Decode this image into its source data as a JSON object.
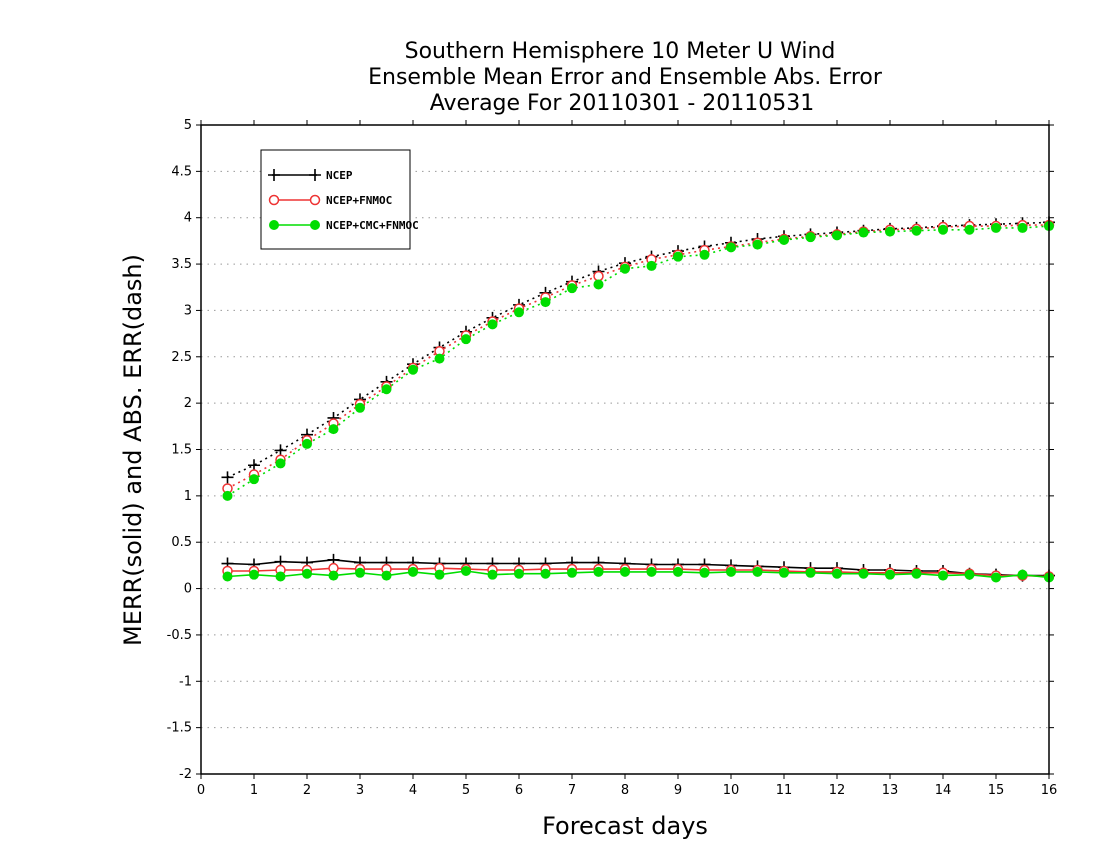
{
  "chart_data": {
    "type": "line",
    "title": [
      "Southern Hemisphere 10 Meter U Wind",
      "Ensemble Mean Error and Ensemble Abs. Error",
      "Average For 20110301 - 20110531"
    ],
    "xlabel": "Forecast days",
    "ylabel": "MERR(solid) and ABS. ERR(dash)",
    "xlim": [
      0,
      16
    ],
    "ylim": [
      -2,
      5
    ],
    "x_ticks": [
      "0",
      "1",
      "2",
      "3",
      "4",
      "5",
      "6",
      "7",
      "8",
      "9",
      "10",
      "11",
      "12",
      "13",
      "14",
      "15",
      "16"
    ],
    "y_ticks": [
      "-2",
      "-1.5",
      "-1",
      "-0.5",
      "0",
      "0.5",
      "1",
      "1.5",
      "2",
      "2.5",
      "3",
      "3.5",
      "4",
      "4.5",
      "5"
    ],
    "grid": "horizontal-dotted",
    "legend_position": "top-left",
    "x": [
      0.5,
      1,
      1.5,
      2,
      2.5,
      3,
      3.5,
      4,
      4.5,
      5,
      5.5,
      6,
      6.5,
      7,
      7.5,
      8,
      8.5,
      9,
      9.5,
      10,
      10.5,
      11,
      11.5,
      12,
      12.5,
      13,
      13.5,
      14,
      14.5,
      15,
      15.5,
      16
    ],
    "series": [
      {
        "name": "NCEP",
        "color": "#000000",
        "marker": "plus",
        "merr": [
          0.27,
          0.26,
          0.29,
          0.28,
          0.31,
          0.28,
          0.28,
          0.28,
          0.27,
          0.27,
          0.27,
          0.27,
          0.27,
          0.28,
          0.28,
          0.27,
          0.26,
          0.26,
          0.26,
          0.25,
          0.24,
          0.23,
          0.22,
          0.22,
          0.2,
          0.2,
          0.19,
          0.19,
          0.16,
          0.15,
          0.14,
          0.14
        ],
        "abserr": [
          1.2,
          1.33,
          1.49,
          1.66,
          1.84,
          2.04,
          2.23,
          2.42,
          2.6,
          2.77,
          2.92,
          3.06,
          3.19,
          3.31,
          3.42,
          3.51,
          3.58,
          3.64,
          3.69,
          3.73,
          3.77,
          3.8,
          3.82,
          3.84,
          3.86,
          3.88,
          3.89,
          3.91,
          3.92,
          3.93,
          3.94,
          3.95
        ]
      },
      {
        "name": "NCEP+FNMOC",
        "color": "#ee3333",
        "marker": "circle-open",
        "merr": [
          0.19,
          0.19,
          0.2,
          0.2,
          0.22,
          0.21,
          0.21,
          0.21,
          0.22,
          0.21,
          0.2,
          0.2,
          0.21,
          0.21,
          0.21,
          0.21,
          0.21,
          0.21,
          0.2,
          0.2,
          0.2,
          0.19,
          0.18,
          0.18,
          0.17,
          0.17,
          0.17,
          0.17,
          0.16,
          0.14,
          0.14,
          0.13
        ],
        "abserr": [
          1.08,
          1.23,
          1.39,
          1.6,
          1.78,
          1.99,
          2.18,
          2.38,
          2.56,
          2.73,
          2.88,
          3.02,
          3.14,
          3.27,
          3.37,
          3.47,
          3.55,
          3.6,
          3.65,
          3.69,
          3.73,
          3.77,
          3.8,
          3.82,
          3.85,
          3.87,
          3.88,
          3.9,
          3.91,
          3.91,
          3.92,
          3.92
        ]
      },
      {
        "name": "NCEP+CMC+FNMOC",
        "color": "#00dd00",
        "marker": "circle-filled",
        "merr": [
          0.13,
          0.15,
          0.13,
          0.16,
          0.14,
          0.17,
          0.14,
          0.18,
          0.15,
          0.19,
          0.15,
          0.16,
          0.16,
          0.17,
          0.18,
          0.18,
          0.18,
          0.18,
          0.17,
          0.18,
          0.18,
          0.17,
          0.17,
          0.16,
          0.16,
          0.15,
          0.16,
          0.14,
          0.15,
          0.12,
          0.15,
          0.12
        ],
        "abserr": [
          1.0,
          1.18,
          1.35,
          1.56,
          1.72,
          1.95,
          2.15,
          2.36,
          2.48,
          2.69,
          2.85,
          2.98,
          3.09,
          3.24,
          3.28,
          3.45,
          3.48,
          3.58,
          3.6,
          3.68,
          3.71,
          3.76,
          3.79,
          3.81,
          3.84,
          3.85,
          3.86,
          3.87,
          3.87,
          3.89,
          3.89,
          3.91
        ]
      }
    ]
  }
}
